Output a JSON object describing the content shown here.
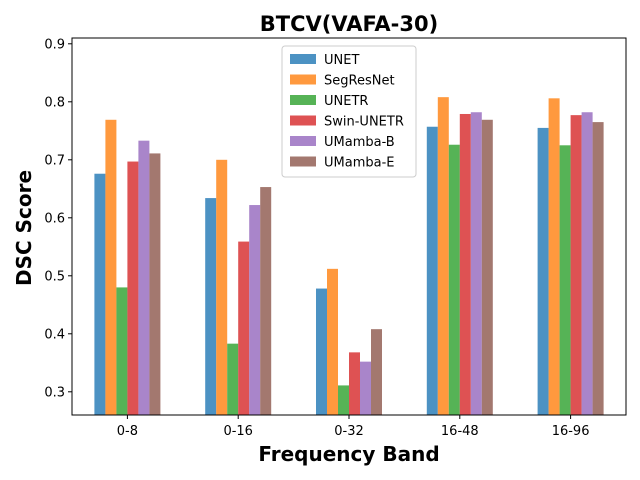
{
  "chart_data": {
    "type": "bar",
    "title": "BTCV(VAFA-30)",
    "xlabel": "Frequency Band",
    "ylabel": "DSC Score",
    "categories": [
      "0-8",
      "0-16",
      "0-32",
      "16-48",
      "16-96"
    ],
    "ylim": [
      0.26,
      0.91
    ],
    "yticks": [
      "0.3",
      "0.4",
      "0.5",
      "0.6",
      "0.7",
      "0.8",
      "0.9"
    ],
    "grid": false,
    "legend_position": "top-center",
    "series": [
      {
        "name": "UNET",
        "color": "#1f77b4",
        "values": [
          0.676,
          0.634,
          0.478,
          0.757,
          0.755
        ]
      },
      {
        "name": "SegResNet",
        "color": "#ff7f0e",
        "values": [
          0.769,
          0.7,
          0.512,
          0.808,
          0.806
        ]
      },
      {
        "name": "UNETR",
        "color": "#2ca02c",
        "values": [
          0.48,
          0.383,
          0.311,
          0.726,
          0.725
        ]
      },
      {
        "name": "Swin-UNETR",
        "color": "#d62728",
        "values": [
          0.697,
          0.559,
          0.368,
          0.779,
          0.777
        ]
      },
      {
        "name": "UMamba-B",
        "color": "#9467bd",
        "values": [
          0.733,
          0.622,
          0.352,
          0.782,
          0.782
        ]
      },
      {
        "name": "UMamba-E",
        "color": "#8c564b",
        "values": [
          0.711,
          0.653,
          0.408,
          0.769,
          0.765
        ]
      }
    ]
  }
}
